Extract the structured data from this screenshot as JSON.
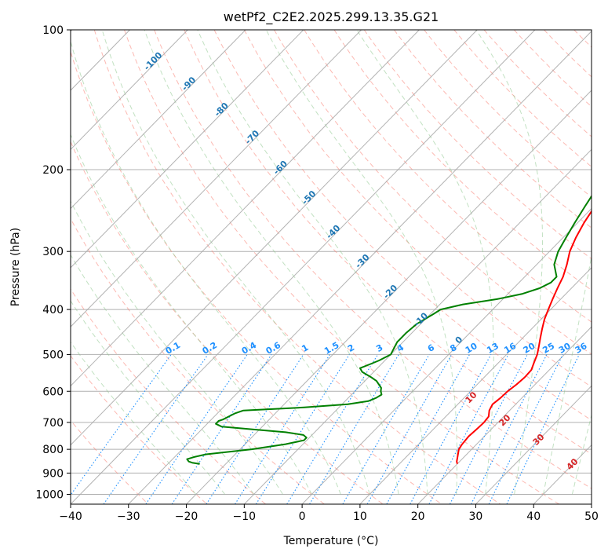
{
  "chart_data": {
    "type": "line",
    "title": "wetPf2_C2E2.2025.299.13.35.G21",
    "xlabel": "Temperature (°C)",
    "ylabel": "Pressure (hPa)",
    "xlim": [
      -40,
      50
    ],
    "ylim": [
      1050,
      100
    ],
    "y_scale": "log",
    "grid": true,
    "x_ticks": [
      "−40",
      "−30",
      "−20",
      "−10",
      "0",
      "10",
      "20",
      "30",
      "40",
      "50"
    ],
    "x_tick_values": [
      -40,
      -30,
      -20,
      -10,
      0,
      10,
      20,
      30,
      40,
      50
    ],
    "y_ticks": [
      "100",
      "200",
      "300",
      "400",
      "500",
      "600",
      "700",
      "800",
      "900",
      "1000"
    ],
    "y_tick_values": [
      100,
      200,
      300,
      400,
      500,
      600,
      700,
      800,
      900,
      1000
    ],
    "colors": {
      "temperature": "#ff0000",
      "dewpoint": "#008000",
      "isotherm": "#a6a6a6",
      "dry_adiabat": "#fa8072",
      "moist_adiabat": "#90c990",
      "mixing_ratio": "#1e90ff",
      "isotherm_label": "#1f77b4",
      "lapse_label": "#d62728"
    },
    "series": [
      {
        "name": "Temperature",
        "p": [
          860,
          850,
          820,
          800,
          780,
          750,
          720,
          700,
          680,
          660,
          640,
          620,
          600,
          580,
          560,
          540,
          520,
          500,
          480,
          460,
          440,
          420,
          400,
          380,
          360,
          340,
          320,
          300,
          280,
          260,
          240,
          220,
          200,
          190,
          185,
          180,
          170,
          160,
          150,
          140,
          130,
          120,
          110,
          100
        ],
        "t": [
          20,
          19.5,
          18.5,
          17.8,
          17.5,
          17.3,
          17.5,
          17.6,
          17.4,
          16.5,
          16,
          16.3,
          16.4,
          16.8,
          17,
          16.9,
          16.1,
          15.3,
          14.2,
          13,
          11.8,
          10.6,
          9.6,
          8.6,
          7.6,
          6.6,
          5.2,
          3.5,
          2.2,
          1.1,
          0.2,
          -1,
          -2,
          -2.6,
          -3.2,
          -3,
          -1,
          0.5,
          1.6,
          2.8,
          4.2,
          6,
          8.5,
          12.5
        ]
      },
      {
        "name": "Dewpoint",
        "p": [
          860,
          855,
          850,
          840,
          830,
          820,
          800,
          780,
          765,
          755,
          745,
          735,
          725,
          715,
          705,
          695,
          690,
          680,
          670,
          660,
          650,
          640,
          630,
          620,
          610,
          600,
          590,
          580,
          570,
          560,
          545,
          535,
          525,
          515,
          500,
          485,
          470,
          450,
          430,
          410,
          400,
          390,
          380,
          370,
          360,
          350,
          340,
          320,
          300,
          280,
          260,
          240,
          220,
          200,
          190,
          180,
          170,
          160,
          150,
          140,
          130,
          120,
          110,
          100
        ],
        "t": [
          -24.5,
          -26,
          -26.8,
          -27.5,
          -26.5,
          -25,
          -18,
          -13,
          -10.5,
          -10.5,
          -11.5,
          -15,
          -21,
          -27,
          -28.5,
          -28.5,
          -28,
          -27.5,
          -27,
          -26,
          -16,
          -9,
          -6,
          -5.2,
          -4.8,
          -5.5,
          -6,
          -7,
          -8,
          -9.5,
          -12,
          -13,
          -12,
          -11,
          -10,
          -10.5,
          -11,
          -11,
          -10.7,
          -9.5,
          -9,
          -6,
          -1,
          2.5,
          4.5,
          5.5,
          5.5,
          3,
          1.5,
          0.5,
          -0.5,
          -1.5,
          -2.5,
          -3.5,
          -4.5,
          -6.5,
          -8.5,
          -8.8,
          -8.7,
          -8,
          -6.5,
          -4.5,
          -2,
          1.5
        ]
      }
    ],
    "isotherm_labels": [
      "-100",
      "-90",
      "-80",
      "-70",
      "-60",
      "-50",
      "-40",
      "-30",
      "-20",
      "-10",
      "0"
    ],
    "lapse_labels": [
      "10",
      "20",
      "30",
      "40"
    ],
    "mixing_ratio_labels": [
      "0.1",
      "0.2",
      "0.4",
      "0.6",
      "1",
      "1.5",
      "2",
      "3",
      "4",
      "6",
      "8",
      "10",
      "13",
      "16",
      "20",
      "25",
      "30",
      "36"
    ]
  }
}
